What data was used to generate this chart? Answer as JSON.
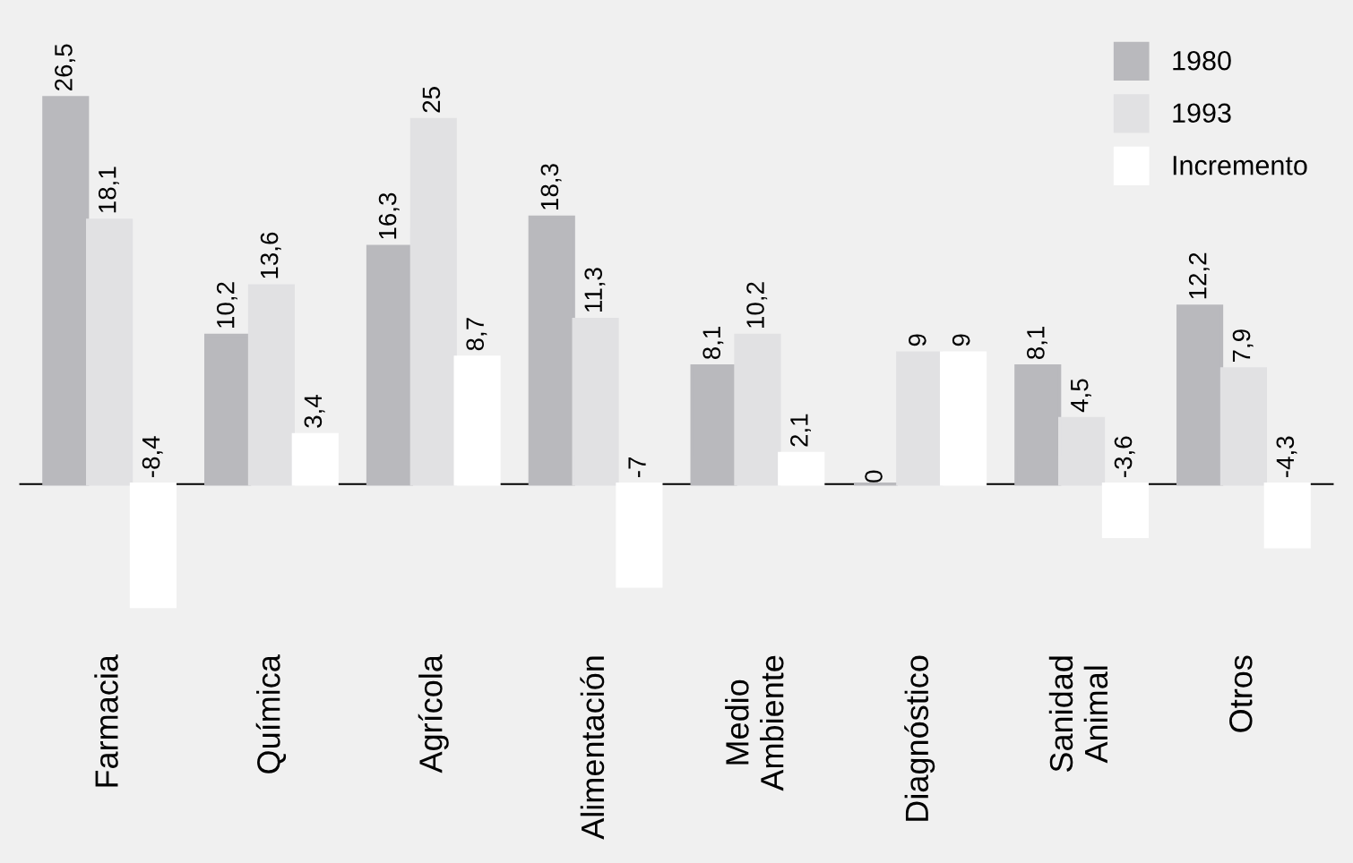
{
  "chart_data": {
    "type": "bar",
    "categories": [
      "Farmacia",
      "Química",
      "Agrícola",
      "Alimentación",
      "Medio\nAmbiente",
      "Diagnóstico",
      "Sanidad\nAnimal",
      "Otros"
    ],
    "series": [
      {
        "name": "1980",
        "color": "#b9b9bd",
        "values": [
          26.5,
          10.2,
          16.3,
          18.3,
          8.1,
          0,
          8.1,
          12.2
        ],
        "value_labels": [
          "26,5",
          "10,2",
          "16,3",
          "18,3",
          "8,1",
          "0",
          "8,1",
          "12,2"
        ]
      },
      {
        "name": "1993",
        "color": "#e1e1e3",
        "values": [
          18.1,
          13.6,
          25,
          11.3,
          10.2,
          9,
          4.5,
          7.9
        ],
        "value_labels": [
          "18,1",
          "13,6",
          "25",
          "11,3",
          "10,2",
          "9",
          "4,5",
          "7,9"
        ]
      },
      {
        "name": "Incremento",
        "color": "#ffffff",
        "values": [
          -8.4,
          3.4,
          8.7,
          -7,
          2.1,
          9,
          -3.6,
          -4.3
        ],
        "value_labels": [
          "-8,4",
          "3,4",
          "8,7",
          "-7",
          "2,1",
          "9",
          "-3,6",
          "-4,3"
        ]
      }
    ],
    "legend": "top right"
  }
}
